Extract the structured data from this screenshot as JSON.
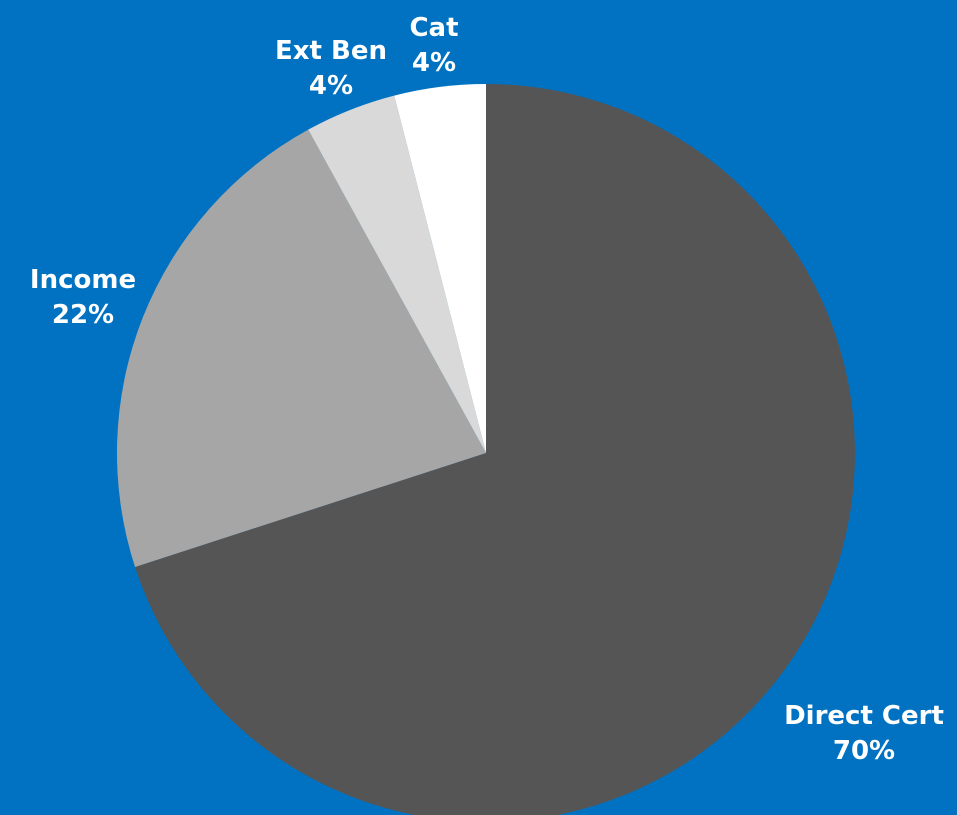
{
  "background_color": "#0072c1",
  "chart_data": {
    "type": "pie",
    "categories": [
      "Direct Cert",
      "Income",
      "Ext Ben",
      "Cat"
    ],
    "values": [
      70,
      22,
      4,
      4
    ],
    "labels": [
      {
        "name": "Direct Cert",
        "pct": "70%"
      },
      {
        "name": "Income",
        "pct": "22%"
      },
      {
        "name": "Ext Ben",
        "pct": "4%"
      },
      {
        "name": "Cat",
        "pct": "4%"
      }
    ],
    "colors": [
      "#555555",
      "#a6a6a6",
      "#d9d9d9",
      "#ffffff"
    ],
    "start": "12 o'clock",
    "direction": "clockwise",
    "legend": "none"
  }
}
